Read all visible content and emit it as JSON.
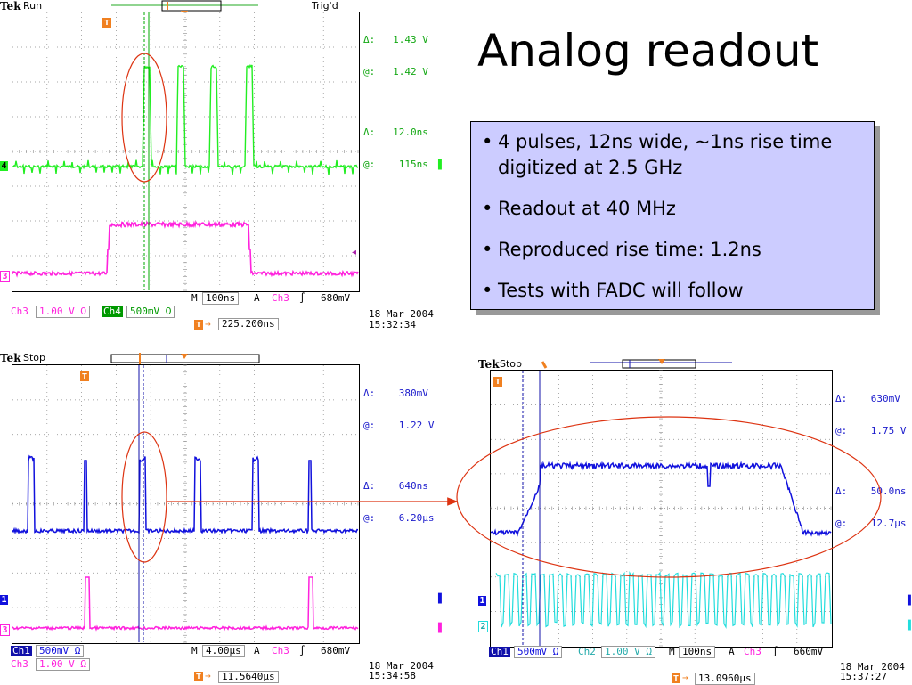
{
  "slide": {
    "title": "Analog readout",
    "bullets": [
      "4 pulses, 12ns wide, ~1ns rise time digitized at 2.5 GHz",
      "Readout at 40 MHz",
      "Reproduced rise time: 1.2ns",
      "Tests with FADC will follow"
    ],
    "bullet_glyph": "•",
    "bullet_bg": "#ccccff"
  },
  "scope1": {
    "brand": "Tek",
    "status": "Run",
    "trig_state": "Trig'd",
    "readouts": [
      {
        "sym": "Δ:",
        "val": "1.43 V"
      },
      {
        "sym": "@:",
        "val": "1.42 V"
      },
      {
        "sym": "Δ:",
        "val": "12.0ns"
      },
      {
        "sym": "@:",
        "val": "115ns"
      }
    ],
    "readout_color": "#13a813",
    "ch_markers": [
      "4",
      "3"
    ],
    "bottom": {
      "ch3_label": "Ch3",
      "ch3_scale": "1.00 V Ω",
      "ch4_label": "Ch4",
      "ch4_scale": "500mV Ω",
      "m_label": "M",
      "timebase": "100ns",
      "a_label": "A",
      "trig_src": "Ch3",
      "trig_slope": "∫",
      "trig_level": "680mV",
      "trig_pos": "225.200ns",
      "date": "18 Mar 2004",
      "time": "15:32:34"
    },
    "colors": {
      "ch4": "#22ee22",
      "ch3": "#ff22dd",
      "ch4_dark": "#009900",
      "cursor": "#00aa00"
    }
  },
  "scope2": {
    "brand": "Tek",
    "status": "Stop",
    "readouts": [
      {
        "sym": "Δ:",
        "val": "380mV"
      },
      {
        "sym": "@:",
        "val": "1.22 V"
      },
      {
        "sym": "Δ:",
        "val": "640ns"
      },
      {
        "sym": "@:",
        "val": "6.20μs"
      }
    ],
    "readout_color": "#1a1acc",
    "ch_markers": [
      "1",
      "3"
    ],
    "bottom": {
      "ch1_label": "Ch1",
      "ch1_scale": "500mV Ω",
      "ch3_label": "Ch3",
      "ch3_scale": "1.00 V Ω",
      "m_label": "M",
      "timebase": "4.00μs",
      "a_label": "A",
      "trig_src": "Ch3",
      "trig_slope": "∫",
      "trig_level": "680mV",
      "trig_pos": "11.5640μs",
      "date": "18 Mar 2004",
      "time": "15:34:58"
    },
    "colors": {
      "ch1": "#1111dd",
      "ch3": "#ff22dd",
      "cursor": "#1111aa"
    }
  },
  "scope3": {
    "brand": "Tek",
    "status": "Stop",
    "readouts": [
      {
        "sym": "Δ:",
        "val": "630mV"
      },
      {
        "sym": "@:",
        "val": "1.75 V"
      },
      {
        "sym": "Δ:",
        "val": "50.0ns"
      },
      {
        "sym": "@:",
        "val": "12.7μs"
      }
    ],
    "readout_color": "#1a1acc",
    "ch_markers": [
      "1",
      "2"
    ],
    "bottom": {
      "ch1_label": "Ch1",
      "ch1_scale": "500mV Ω",
      "ch2_label": "Ch2",
      "ch2_scale": "1.00 V Ω",
      "m_label": "M",
      "timebase": "100ns",
      "a_label": "A",
      "trig_src": "Ch3",
      "trig_slope": "∫",
      "trig_level": "660mV",
      "trig_pos": "13.0960μs",
      "date": "18 Mar 2004",
      "time": "15:37:27"
    },
    "colors": {
      "ch1": "#1111dd",
      "ch2": "#22dddd",
      "cursor": "#1111aa"
    }
  },
  "trigger_marker_glyph": "T",
  "trigger_arrow_glyph": "→",
  "annotation_color": "#dd3311"
}
